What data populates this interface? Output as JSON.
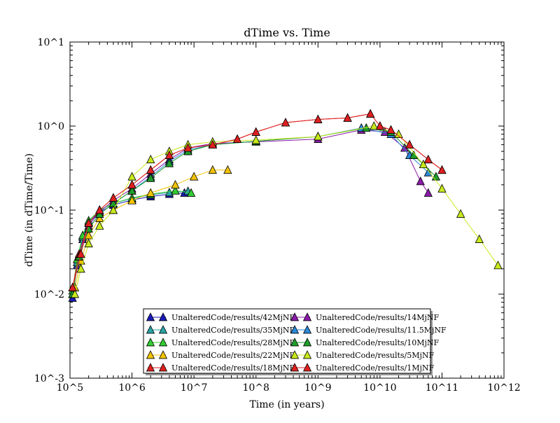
{
  "chart_data": {
    "type": "line",
    "title": "dTime vs. Time",
    "xlabel": "Time (in years)",
    "ylabel": "dTime (in dTime/Time)",
    "x_scale": "log",
    "y_scale": "log",
    "xlim": [
      100000,
      1000000000000
    ],
    "ylim": [
      0.001,
      10
    ],
    "x_ticks": [
      {
        "value": 100000,
        "label": "10^5"
      },
      {
        "value": 1000000,
        "label": "10^6"
      },
      {
        "value": 10000000,
        "label": "10^7"
      },
      {
        "value": 100000000,
        "label": "10^8"
      },
      {
        "value": 1000000000,
        "label": "10^9"
      },
      {
        "value": 10000000000,
        "label": "10^10"
      },
      {
        "value": 100000000000,
        "label": "10^11"
      },
      {
        "value": 1000000000000,
        "label": "10^12"
      }
    ],
    "y_ticks": [
      {
        "value": 0.001,
        "label": "10^-3"
      },
      {
        "value": 0.01,
        "label": "10^-2"
      },
      {
        "value": 0.1,
        "label": "10^-1"
      },
      {
        "value": 1,
        "label": "10^0"
      },
      {
        "value": 10,
        "label": "10^1"
      }
    ],
    "grid": false,
    "legend_position": "bottom-center",
    "legend_columns": 2,
    "series": [
      {
        "name": "UnalteredCode/results/42MjNF",
        "color": "#1a1ab8",
        "points": [
          [
            110000,
            0.009
          ],
          [
            130000,
            0.022
          ],
          [
            160000,
            0.045
          ],
          [
            200000,
            0.07
          ],
          [
            300000,
            0.095
          ],
          [
            500000,
            0.115
          ],
          [
            1000000,
            0.132
          ],
          [
            2000000,
            0.145
          ],
          [
            4000000,
            0.155
          ],
          [
            7000000,
            0.16
          ]
        ]
      },
      {
        "name": "UnalteredCode/results/35MjNF",
        "color": "#2aa3a3",
        "points": [
          [
            110000,
            0.01
          ],
          [
            130000,
            0.024
          ],
          [
            160000,
            0.048
          ],
          [
            200000,
            0.072
          ],
          [
            300000,
            0.1
          ],
          [
            500000,
            0.12
          ],
          [
            1000000,
            0.138
          ],
          [
            2000000,
            0.152
          ],
          [
            4000000,
            0.162
          ],
          [
            8000000,
            0.168
          ]
        ]
      },
      {
        "name": "UnalteredCode/results/28MjNF",
        "color": "#33cc33",
        "points": [
          [
            110000,
            0.011
          ],
          [
            130000,
            0.026
          ],
          [
            160000,
            0.05
          ],
          [
            200000,
            0.075
          ],
          [
            300000,
            0.1
          ],
          [
            500000,
            0.12
          ],
          [
            1000000,
            0.14
          ],
          [
            2000000,
            0.155
          ],
          [
            5000000,
            0.17
          ],
          [
            9000000,
            0.16
          ]
        ]
      },
      {
        "name": "UnalteredCode/results/22MjNF",
        "color": "#f2c300",
        "points": [
          [
            120000,
            0.012
          ],
          [
            150000,
            0.025
          ],
          [
            200000,
            0.05
          ],
          [
            300000,
            0.08
          ],
          [
            500000,
            0.1
          ],
          [
            1000000,
            0.13
          ],
          [
            2000000,
            0.16
          ],
          [
            5000000,
            0.2
          ],
          [
            10000000,
            0.25
          ],
          [
            20000000,
            0.3
          ],
          [
            35000000,
            0.3
          ]
        ]
      },
      {
        "name": "UnalteredCode/results/18MjNF",
        "color": "#e02020",
        "points": [
          [
            110000,
            0.012
          ],
          [
            140000,
            0.03
          ],
          [
            200000,
            0.07
          ],
          [
            300000,
            0.1
          ],
          [
            500000,
            0.14
          ],
          [
            1000000,
            0.2
          ],
          [
            2000000,
            0.3
          ],
          [
            4000000,
            0.45
          ],
          [
            8000000,
            0.55
          ],
          [
            20000000,
            0.6
          ],
          [
            50000000,
            0.7
          ],
          [
            100000000,
            0.85
          ],
          [
            300000000,
            1.1
          ],
          [
            1000000000,
            1.2
          ],
          [
            3000000000,
            1.25
          ],
          [
            7000000000,
            1.4
          ],
          [
            10000000000,
            1.0
          ],
          [
            15000000000,
            0.9
          ],
          [
            30000000000,
            0.6
          ],
          [
            60000000000,
            0.4
          ],
          [
            100000000000,
            0.3
          ]
        ]
      },
      {
        "name": "UnalteredCode/results/14MjNF",
        "color": "#8a1aa8",
        "points": [
          [
            110000,
            0.01
          ],
          [
            140000,
            0.028
          ],
          [
            200000,
            0.065
          ],
          [
            300000,
            0.095
          ],
          [
            500000,
            0.13
          ],
          [
            1000000,
            0.18
          ],
          [
            2000000,
            0.27
          ],
          [
            4000000,
            0.4
          ],
          [
            8000000,
            0.55
          ],
          [
            20000000,
            0.62
          ],
          [
            100000000,
            0.65
          ],
          [
            1000000000,
            0.7
          ],
          [
            5000000000,
            0.9
          ],
          [
            12000000000,
            0.85
          ],
          [
            25000000000,
            0.55
          ],
          [
            45000000000,
            0.22
          ],
          [
            60000000000,
            0.16
          ]
        ]
      },
      {
        "name": "UnalteredCode/results/11.5MjNF",
        "color": "#2a8ad8",
        "points": [
          [
            110000,
            0.01
          ],
          [
            140000,
            0.028
          ],
          [
            200000,
            0.06
          ],
          [
            300000,
            0.09
          ],
          [
            500000,
            0.12
          ],
          [
            1000000,
            0.17
          ],
          [
            2000000,
            0.25
          ],
          [
            4000000,
            0.38
          ],
          [
            8000000,
            0.52
          ],
          [
            20000000,
            0.6
          ],
          [
            100000000,
            0.66
          ],
          [
            1000000000,
            0.75
          ],
          [
            5000000000,
            0.95
          ],
          [
            15000000000,
            0.8
          ],
          [
            30000000000,
            0.45
          ],
          [
            60000000000,
            0.28
          ]
        ]
      },
      {
        "name": "UnalteredCode/results/10MjNF",
        "color": "#1f9e2a",
        "points": [
          [
            110000,
            0.01
          ],
          [
            140000,
            0.028
          ],
          [
            200000,
            0.06
          ],
          [
            300000,
            0.09
          ],
          [
            500000,
            0.12
          ],
          [
            1000000,
            0.17
          ],
          [
            2000000,
            0.24
          ],
          [
            4000000,
            0.36
          ],
          [
            8000000,
            0.5
          ],
          [
            20000000,
            0.6
          ],
          [
            100000000,
            0.66
          ],
          [
            1000000000,
            0.75
          ],
          [
            6000000000,
            0.95
          ],
          [
            15000000000,
            0.85
          ],
          [
            35000000000,
            0.45
          ],
          [
            80000000000,
            0.25
          ]
        ]
      },
      {
        "name": "UnalteredCode/results/5MjNF",
        "color": "#c8ea1c",
        "points": [
          [
            120000,
            0.01
          ],
          [
            150000,
            0.02
          ],
          [
            200000,
            0.04
          ],
          [
            300000,
            0.065
          ],
          [
            500000,
            0.1
          ],
          [
            1000000,
            0.25
          ],
          [
            2000000,
            0.4
          ],
          [
            4000000,
            0.5
          ],
          [
            8000000,
            0.6
          ],
          [
            20000000,
            0.65
          ],
          [
            100000000,
            0.68
          ],
          [
            1000000000,
            0.75
          ],
          [
            8000000000,
            1.0
          ],
          [
            20000000000,
            0.8
          ],
          [
            50000000000,
            0.35
          ],
          [
            100000000000,
            0.18
          ],
          [
            200000000000,
            0.09
          ],
          [
            400000000000,
            0.045
          ],
          [
            800000000000,
            0.022
          ]
        ]
      },
      {
        "name": "UnalteredCode/results/1MjNF",
        "color": "#e02020",
        "points": [
          [
            110000,
            0.012
          ],
          [
            150000,
            0.03
          ],
          [
            200000,
            0.07
          ],
          [
            300000,
            0.1
          ],
          [
            500000,
            0.14
          ],
          [
            1000000,
            0.2
          ],
          [
            2000000,
            0.3
          ],
          [
            4000000,
            0.45
          ],
          [
            8000000,
            0.55
          ],
          [
            20000000,
            0.6
          ],
          [
            50000000,
            0.7
          ],
          [
            100000000,
            0.85
          ],
          [
            300000000,
            1.1
          ],
          [
            1000000000,
            1.2
          ],
          [
            3000000000,
            1.25
          ],
          [
            7000000000,
            1.4
          ],
          [
            10000000000,
            1.0
          ],
          [
            15000000000,
            0.9
          ],
          [
            30000000000,
            0.6
          ],
          [
            60000000000,
            0.4
          ],
          [
            100000000000,
            0.3
          ]
        ]
      }
    ]
  }
}
